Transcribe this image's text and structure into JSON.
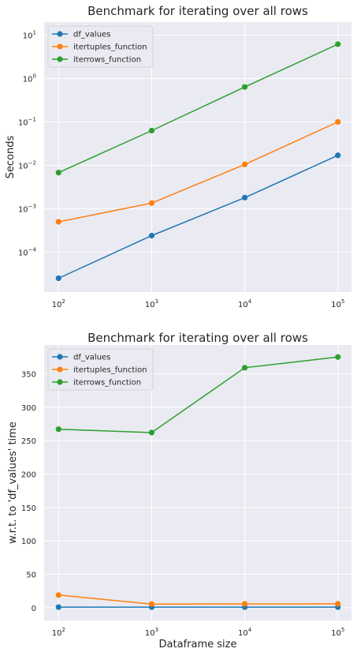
{
  "chart_data": [
    {
      "type": "line",
      "title": "Benchmark for iterating over all rows",
      "xlabel": "",
      "ylabel": "Seconds",
      "xscale": "log",
      "yscale": "log",
      "x": [
        100,
        1000,
        10000,
        100000
      ],
      "xlim": [
        70,
        140000
      ],
      "ylim": [
        1.2e-05,
        20
      ],
      "xticks": [
        {
          "base": "10",
          "exp": "2"
        },
        {
          "base": "10",
          "exp": "3"
        },
        {
          "base": "10",
          "exp": "4"
        },
        {
          "base": "10",
          "exp": "5"
        }
      ],
      "yticks": [
        {
          "base": "10",
          "exp": "−4"
        },
        {
          "base": "10",
          "exp": "−3"
        },
        {
          "base": "10",
          "exp": "−2"
        },
        {
          "base": "10",
          "exp": "−1"
        },
        {
          "base": "10",
          "exp": "0"
        },
        {
          "base": "10",
          "exp": "1"
        }
      ],
      "grid": true,
      "legend_position": "top-left",
      "series": [
        {
          "name": "df_values",
          "color": "#1f77b4",
          "values": [
            2.5e-05,
            0.00024,
            0.0018,
            0.017
          ]
        },
        {
          "name": "itertuples_function",
          "color": "#ff7f0e",
          "values": [
            0.0005,
            0.00135,
            0.0105,
            0.1
          ]
        },
        {
          "name": "iterrows_function",
          "color": "#2ca02c",
          "values": [
            0.0068,
            0.063,
            0.64,
            6.2
          ]
        }
      ]
    },
    {
      "type": "line",
      "title": "Benchmark for iterating over all rows",
      "xlabel": "Dataframe size",
      "ylabel": "w.r.t. to 'df_values' time",
      "xscale": "log",
      "yscale": "linear",
      "x": [
        100,
        1000,
        10000,
        100000
      ],
      "xlim": [
        70,
        140000
      ],
      "ylim": [
        -19,
        393
      ],
      "xticks": [
        {
          "base": "10",
          "exp": "2"
        },
        {
          "base": "10",
          "exp": "3"
        },
        {
          "base": "10",
          "exp": "4"
        },
        {
          "base": "10",
          "exp": "5"
        }
      ],
      "yticks": [
        "0",
        "50",
        "100",
        "150",
        "200",
        "250",
        "300",
        "350"
      ],
      "grid": true,
      "legend_position": "top-left",
      "series": [
        {
          "name": "df_values",
          "color": "#1f77b4",
          "values": [
            1,
            1,
            1,
            1
          ]
        },
        {
          "name": "itertuples_function",
          "color": "#ff7f0e",
          "values": [
            19,
            5.5,
            5.8,
            5.9
          ]
        },
        {
          "name": "iterrows_function",
          "color": "#2ca02c",
          "values": [
            267,
            262,
            359,
            375
          ]
        }
      ]
    }
  ]
}
